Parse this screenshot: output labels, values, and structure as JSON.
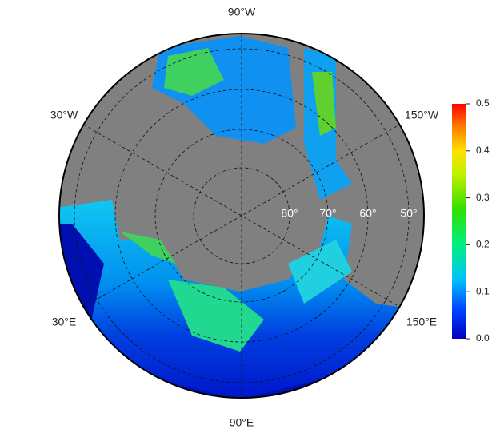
{
  "map": {
    "meridian_labels": [
      "90°W",
      "30°W",
      "150°W",
      "30°E",
      "150°E",
      "90°E"
    ],
    "parallel_labels": [
      "80°",
      "70°",
      "60°",
      "50°"
    ]
  },
  "colorbar": {
    "lim": [
      0,
      0.5
    ],
    "ticks": [
      {
        "value": 0,
        "label": "0.0"
      },
      0.1,
      0.2,
      0.3,
      0.4,
      0.5
    ]
  }
}
